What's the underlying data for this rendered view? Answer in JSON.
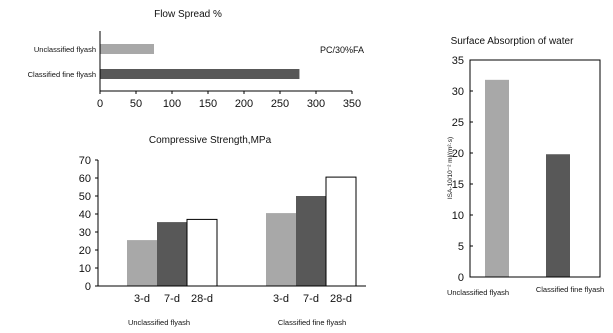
{
  "colors": {
    "light": "#a8a8a8",
    "dark": "#585858",
    "white": "#ffffff",
    "axis": "#000000"
  },
  "chart_data": [
    {
      "type": "bar",
      "orientation": "horizontal",
      "title": "Flow Spread %",
      "annotation": "PC/30%FA",
      "categories": [
        "Unclassified flyash",
        "Classified fine flyash"
      ],
      "values": [
        75,
        277
      ],
      "xlim": [
        0,
        350
      ],
      "xticks": [
        0,
        50,
        100,
        150,
        200,
        250,
        300,
        350
      ],
      "grid": false
    },
    {
      "type": "bar",
      "title": "Compressive Strength,MPa",
      "groups": [
        {
          "label": "Unclassified flyash",
          "ages": [
            "3-d",
            "7-d",
            "28-d"
          ],
          "values": [
            25.5,
            35.5,
            37
          ]
        },
        {
          "label": "Classified fine flyash",
          "ages": [
            "3-d",
            "7-d",
            "28-d"
          ],
          "values": [
            40.5,
            50,
            60.5
          ]
        }
      ],
      "ylim": [
        0,
        70
      ],
      "yticks": [
        0,
        10,
        20,
        30,
        40,
        50,
        60,
        70
      ],
      "grid": false
    },
    {
      "type": "bar",
      "title": "Surface Absorption of water",
      "ylabel": "ISA-10/10⁻² ml/(m²·s)",
      "categories": [
        "Unclassified flyash",
        "Classified fine flyash"
      ],
      "values": [
        31.8,
        19.8
      ],
      "ylim": [
        0,
        35
      ],
      "yticks": [
        0,
        5,
        10,
        15,
        20,
        25,
        30,
        35
      ],
      "grid": false
    }
  ]
}
